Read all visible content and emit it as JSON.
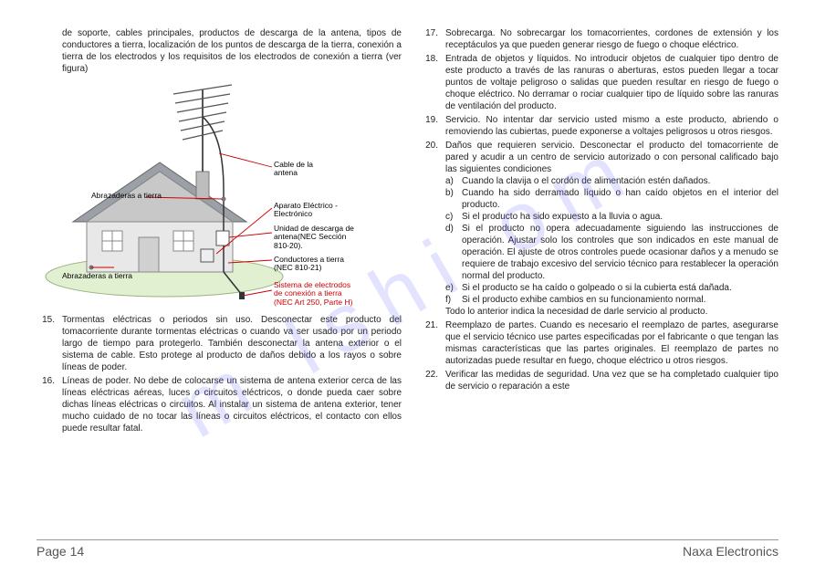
{
  "watermark": "m   lshi   om",
  "intro": "de soporte, cables principales, productos de descarga de la antena, tipos de conductores a tierra, localización de los puntos de descarga de la tierra, conexión a tierra de los electrodos y los requisitos de los electrodos de conexión a tierra (ver figura)",
  "figure": {
    "labels": {
      "abrazaderas1": "Abrazaderas a tierra",
      "abrazaderas2": "Abrazaderas a tierra",
      "cable": "Cable de la\nantena",
      "aparato": "Aparato Eléctrico -\nElectrónico",
      "unidad": "Unidad de descarga de\nantena(NEC Sección\n810-20).",
      "conductores": "Conductores a tierra\n(NEC 810-21)",
      "sistema": "Sistema de electrodos\nde conexión a tierra\n(NEC Art 250, Parte H)"
    },
    "colors": {
      "house_roof": "#9aa0a6",
      "house_wall": "#e8e8e8",
      "house_shadow": "#c8c8c8",
      "antenna": "#555555",
      "ground": "#e0f0d0",
      "leader": "#cc0000",
      "wire": "#333333"
    }
  },
  "left_items": [
    {
      "n": "15.",
      "t": "Tormentas eléctricas o periodos sin    uso. Desconectar este producto del tomacorriente durante tormentas eléctricas o cuando va ser usado por un periodo largo de tiempo  para  protegerlo. También desconectar la antena exterior o el sistema de cable. Esto protege al producto de daños debido a  los rayos o sobre líneas de poder."
    },
    {
      "n": "16.",
      "t": "Líneas de poder. No debe de colocarse un sistema de antena exterior cerca de las líneas eléctricas aéreas, luces o circuitos eléctricos, o donde pueda caer sobre dichas líneas eléctricas o circuitos. Al instalar un sistema de antena exterior, tener mucho cuidado de no tocar las líneas o circuitos eléctricos, el contacto con ellos puede resultar fatal."
    }
  ],
  "right_items": [
    {
      "n": "17.",
      "t": "Sobrecarga. No sobrecargar los tomacorrientes, cordones de extensión y los receptáculos ya que pueden generar riesgo de fuego o choque eléctrico."
    },
    {
      "n": "18.",
      "t": "Entrada de objetos y líquidos. No introducir objetos de cualquier tipo dentro de este producto a través de las ranuras o aberturas, estos pueden llegar a tocar puntos de voltaje peligroso o salidas que pueden resultar en riesgo de fuego o choque eléctrico. No derramar o rociar cualquier tipo de líquido sobre las ranuras de ventilación del producto."
    },
    {
      "n": "19.",
      "t": "Servicio. No intentar dar servicio usted mismo a este producto, abriendo o removiendo las cubiertas, puede exponerse a voltajes peligrosos u otros riesgos."
    },
    {
      "n": "20.",
      "t": "Daños que requieren servicio. Desconectar el producto del tomacorriente de pared y acudir a un centro de servicio autorizado o con personal calificado bajo las siguientes condiciones",
      "subs": [
        {
          "l": "a)",
          "t": "Cuando la clavija o el cordón de alimentación estén dañados."
        },
        {
          "l": "b)",
          "t": "Cuando ha sido derramado líquido o han caído objetos en el interior del producto."
        },
        {
          "l": "c)",
          "t": "Si el producto ha sido expuesto a la lluvia o agua."
        },
        {
          "l": "d)",
          "t": "Si el producto no opera adecuadamente siguiendo las instrucciones de operación. Ajustar solo los controles que son indicados en este manual de operación. El ajuste de otros controles puede ocasionar daños y a menudo se requiere de trabajo excesivo del servicio técnico para restablecer la operación normal del producto."
        },
        {
          "l": "e)",
          "t": "Si el producto se ha caído o golpeado o si la cubierta está dañada."
        },
        {
          "l": "f)",
          "t": "Si el producto exhibe cambios en su funcionamiento normal."
        }
      ],
      "tail": "Todo lo anterior indica la necesidad de darle servicio al producto."
    },
    {
      "n": "21.",
      "t": "Reemplazo de partes. Cuando es necesario el reemplazo de partes, asegurarse que el servicio técnico use partes especificadas por el fabricante o que tengan las mismas características que las partes originales. El reemplazo de partes no autorizadas puede resultar en fuego, choque eléctrico u otros riesgos."
    },
    {
      "n": "22.",
      "t": "Verificar las medidas de seguridad. Una vez que se ha completado cualquier tipo de servicio o reparación a este"
    }
  ],
  "footer": {
    "page": "Page 14",
    "brand": "Naxa Electronics"
  }
}
